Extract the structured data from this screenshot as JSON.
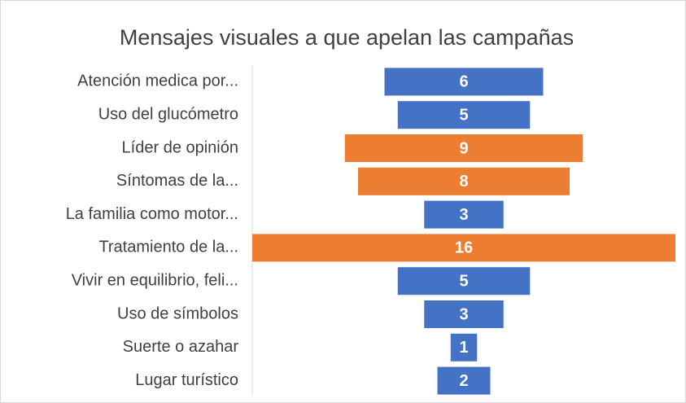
{
  "chart_data": {
    "type": "funnel",
    "title": "Mensajes visuales a que apelan las campañas",
    "categories": [
      "Atención medica por...",
      "Uso del glucómetro",
      "Líder de opinión",
      "Síntomas de la...",
      "La familia como motor...",
      "Tratamiento de la...",
      "Vivir en equilibrio, feli...",
      "Uso de símbolos",
      "Suerte o azahar",
      "Lugar turístico"
    ],
    "values": [
      6,
      5,
      9,
      8,
      3,
      16,
      5,
      3,
      1,
      2
    ],
    "colors": [
      "#4472c4",
      "#4472c4",
      "#ed7d31",
      "#ed7d31",
      "#4472c4",
      "#ed7d31",
      "#4472c4",
      "#4472c4",
      "#4472c4",
      "#4472c4"
    ]
  }
}
